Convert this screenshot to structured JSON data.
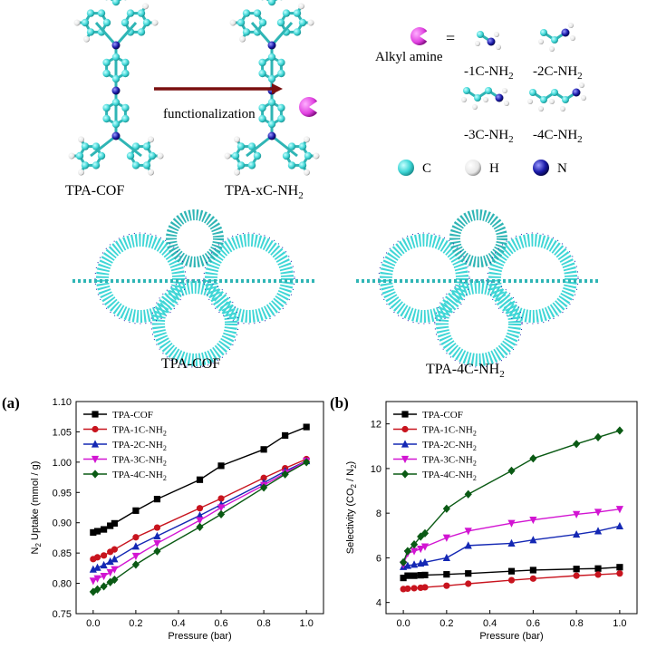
{
  "top": {
    "tpa_cof": "TPA-COF",
    "tpa_xc": "TPA-xC-NH",
    "tpa_xc_sub": "2",
    "functionalization": "functionalization",
    "alkyl_amine": "Alkyl amine",
    "equals": "=",
    "amines": [
      {
        "main": "-1C-NH",
        "sub": "2"
      },
      {
        "main": "-2C-NH",
        "sub": "2"
      },
      {
        "main": "-3C-NH",
        "sub": "2"
      },
      {
        "main": "-4C-NH",
        "sub": "2"
      }
    ],
    "atoms": [
      {
        "label": "C",
        "color": "#3fd6d6"
      },
      {
        "label": "H",
        "color": "#f0f0f0"
      },
      {
        "label": "N",
        "color": "#1a1aa8"
      }
    ],
    "framework_left": "TPA-COF",
    "framework_right": "TPA-4C-NH",
    "framework_right_sub": "2",
    "molecule_color": "#3fd6d6",
    "arrow_color": "#7a1010",
    "pacman_color": "#e040e0"
  },
  "panel_a_label": "(a)",
  "panel_b_label": "(b)",
  "chart_data": [
    {
      "type": "line",
      "ylabel_main": "N",
      "ylabel_sub": "2",
      "ylabel_rest": " Uptake (mmol / g)",
      "xlabel": "Pressure (bar)",
      "xlim": [
        -0.08,
        1.08
      ],
      "ylim": [
        0.75,
        1.1
      ],
      "xticks": [
        "0.0",
        "0.2",
        "0.4",
        "0.6",
        "0.8",
        "1.0"
      ],
      "yticks": [
        "0.75",
        "0.80",
        "0.85",
        "0.90",
        "0.95",
        "1.00",
        "1.05",
        "1.10"
      ],
      "x": [
        0.0,
        0.02,
        0.05,
        0.08,
        0.1,
        0.2,
        0.3,
        0.5,
        0.6,
        0.8,
        0.9,
        1.0
      ],
      "legend_position": "top-left",
      "series": [
        {
          "name": "TPA-COF",
          "legend_main": "TPA-COF",
          "legend_sub": "",
          "color": "#000000",
          "marker": "square",
          "values": [
            0.884,
            0.886,
            0.889,
            0.895,
            0.899,
            0.92,
            0.939,
            0.971,
            0.994,
            1.021,
            1.044,
            1.058
          ]
        },
        {
          "name": "TPA-1C-NH2",
          "legend_main": "TPA-1C-NH",
          "legend_sub": "2",
          "color": "#c8141e",
          "marker": "circle",
          "values": [
            0.84,
            0.843,
            0.846,
            0.852,
            0.856,
            0.876,
            0.892,
            0.924,
            0.94,
            0.974,
            0.99,
            1.005
          ]
        },
        {
          "name": "TPA-2C-NH2",
          "legend_main": "TPA-2C-NH",
          "legend_sub": "2",
          "color": "#1428b4",
          "marker": "triangle",
          "values": [
            0.823,
            0.826,
            0.83,
            0.836,
            0.84,
            0.861,
            0.878,
            0.912,
            0.93,
            0.966,
            0.985,
            1.002
          ]
        },
        {
          "name": "TPA-3C-NH2",
          "legend_main": "TPA-3C-NH",
          "legend_sub": "2",
          "color": "#d214d2",
          "marker": "triangle-down",
          "values": [
            0.804,
            0.808,
            0.812,
            0.818,
            0.823,
            0.845,
            0.866,
            0.904,
            0.925,
            0.962,
            0.982,
            1.002
          ]
        },
        {
          "name": "TPA-4C-NH2",
          "legend_main": "TPA-4C-NH",
          "legend_sub": "2",
          "color": "#0a5a14",
          "marker": "diamond",
          "values": [
            0.786,
            0.79,
            0.795,
            0.802,
            0.806,
            0.831,
            0.853,
            0.893,
            0.914,
            0.958,
            0.98,
            1.0
          ]
        }
      ]
    },
    {
      "type": "line",
      "ylabel_main": "Selectivity (CO",
      "ylabel_sub": "2",
      "ylabel_mid": " / N",
      "ylabel_sub2": "2",
      "ylabel_end": ")",
      "xlabel": "Pressure (bar)",
      "xlim": [
        -0.08,
        1.08
      ],
      "ylim": [
        3.5,
        13.0
      ],
      "xticks": [
        "0.0",
        "0.2",
        "0.4",
        "0.6",
        "0.8",
        "1.0"
      ],
      "yticks": [
        "4",
        "6",
        "8",
        "10",
        "12"
      ],
      "x": [
        0.0,
        0.02,
        0.05,
        0.08,
        0.1,
        0.2,
        0.3,
        0.5,
        0.6,
        0.8,
        0.9,
        1.0
      ],
      "legend_position": "top-left",
      "series": [
        {
          "name": "TPA-COF",
          "legend_main": "TPA-COF",
          "legend_sub": "",
          "color": "#000000",
          "marker": "square",
          "values": [
            5.1,
            5.2,
            5.2,
            5.22,
            5.23,
            5.26,
            5.3,
            5.4,
            5.45,
            5.5,
            5.52,
            5.58
          ]
        },
        {
          "name": "TPA-1C-NH2",
          "legend_main": "TPA-1C-NH",
          "legend_sub": "2",
          "color": "#c8141e",
          "marker": "circle",
          "values": [
            4.6,
            4.62,
            4.64,
            4.66,
            4.68,
            4.75,
            4.84,
            5.0,
            5.07,
            5.2,
            5.25,
            5.3
          ]
        },
        {
          "name": "TPA-2C-NH2",
          "legend_main": "TPA-2C-NH",
          "legend_sub": "2",
          "color": "#1428b4",
          "marker": "triangle",
          "values": [
            5.6,
            5.65,
            5.7,
            5.75,
            5.8,
            6.0,
            6.55,
            6.65,
            6.8,
            7.05,
            7.2,
            7.42
          ]
        },
        {
          "name": "TPA-3C-NH2",
          "legend_main": "TPA-3C-NH",
          "legend_sub": "2",
          "color": "#d214d2",
          "marker": "triangle-down",
          "values": [
            5.7,
            6.2,
            6.3,
            6.4,
            6.5,
            6.9,
            7.2,
            7.55,
            7.7,
            7.95,
            8.05,
            8.18
          ]
        },
        {
          "name": "TPA-4C-NH2",
          "legend_main": "TPA-4C-NH",
          "legend_sub": "2",
          "color": "#0a5a14",
          "marker": "diamond",
          "values": [
            5.8,
            6.3,
            6.6,
            6.95,
            7.1,
            8.2,
            8.85,
            9.9,
            10.45,
            11.1,
            11.4,
            11.7
          ]
        }
      ]
    }
  ]
}
